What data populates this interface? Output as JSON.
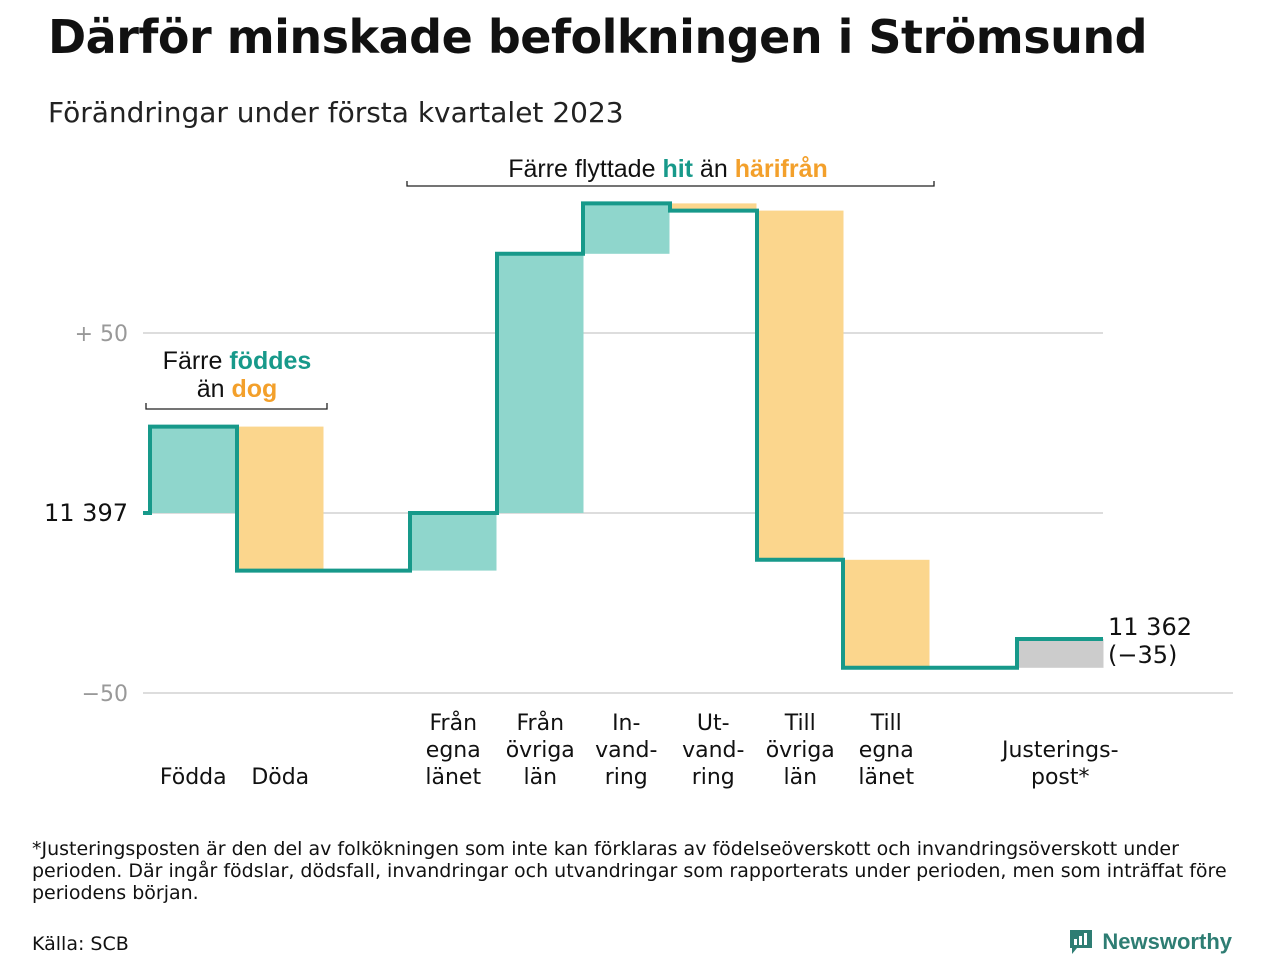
{
  "title": "Därför minskade befolkningen i Strömsund",
  "subtitle": "Förändringar under första kvartalet 2023",
  "colors": {
    "inflow": "#8fd6cc",
    "outflow": "#fbd68d",
    "adjustment": "#cccccc",
    "line": "#17998a",
    "teal_text": "#17998a",
    "orange_text": "#f3a02b",
    "grid": "#dddddd",
    "tick_text": "#999999"
  },
  "chart_data": {
    "type": "waterfall",
    "start_value": 11397,
    "end_value": 11362,
    "end_change": -35,
    "start_label": "11 397",
    "end_label_value": "11 362",
    "end_label_change": "(−35)",
    "yticks": [
      {
        "value": 50,
        "label": "+ 50"
      },
      {
        "value": -50,
        "label": "−50"
      }
    ],
    "ylim": [
      -50,
      90
    ],
    "grid": true,
    "steps": [
      {
        "label_lines": [
          "Födda"
        ],
        "change": 24,
        "kind": "in"
      },
      {
        "label_lines": [
          "Döda"
        ],
        "change": -40,
        "kind": "out"
      },
      {
        "label_lines": [
          "Från",
          "egna",
          "länet"
        ],
        "change": 16,
        "kind": "in"
      },
      {
        "label_lines": [
          "Från",
          "övriga",
          "län"
        ],
        "change": 72,
        "kind": "in"
      },
      {
        "label_lines": [
          "In-",
          "vand-",
          "ring"
        ],
        "change": 14,
        "kind": "in"
      },
      {
        "label_lines": [
          "Ut-",
          "vand-",
          "ring"
        ],
        "change": -2,
        "kind": "out"
      },
      {
        "label_lines": [
          "Till",
          "övriga",
          "län"
        ],
        "change": -97,
        "kind": "out"
      },
      {
        "label_lines": [
          "Till",
          "egna",
          "länet"
        ],
        "change": -30,
        "kind": "out"
      },
      {
        "label_lines": [
          "Justerings-",
          "post*"
        ],
        "change": 8,
        "kind": "adj"
      }
    ],
    "annotations": [
      {
        "parts": [
          {
            "text": "Färre flyttade ",
            "style": "plain"
          },
          {
            "text": "hit",
            "style": "teal"
          },
          {
            "text": " än ",
            "style": "plain"
          },
          {
            "text": "härifrån",
            "style": "orange"
          }
        ]
      },
      {
        "line1": [
          {
            "text": "Färre ",
            "style": "plain"
          },
          {
            "text": "föddes",
            "style": "teal"
          }
        ],
        "line2": [
          {
            "text": "än ",
            "style": "plain"
          },
          {
            "text": "dog",
            "style": "orange"
          }
        ]
      }
    ]
  },
  "footnote": "*Justeringsposten är den del av folkökningen som inte kan förklaras av födelseöverskott och invandringsöverskott under perioden. Där ingår födslar, dödsfall, invandringar och utvandringar som rapporterats under perioden, men som inträffat före periodens början.",
  "source": "Källa: SCB",
  "brand": {
    "name": "Newsworthy",
    "icon": "newsworthy-logo-icon",
    "color": "#2e7d73"
  }
}
